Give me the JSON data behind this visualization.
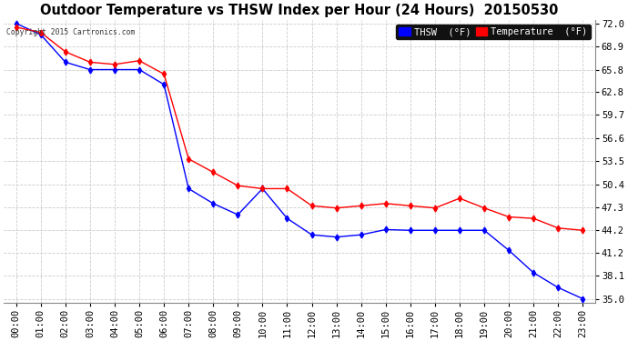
{
  "title": "Outdoor Temperature vs THSW Index per Hour (24 Hours)  20150530",
  "copyright": "Copyright 2015 Cartronics.com",
  "x_labels": [
    "00:00",
    "01:00",
    "02:00",
    "03:00",
    "04:00",
    "05:00",
    "06:00",
    "07:00",
    "08:00",
    "09:00",
    "10:00",
    "11:00",
    "12:00",
    "13:00",
    "14:00",
    "15:00",
    "16:00",
    "17:00",
    "18:00",
    "19:00",
    "20:00",
    "21:00",
    "22:00",
    "23:00"
  ],
  "thsw": [
    72.0,
    70.5,
    66.8,
    65.8,
    65.8,
    65.8,
    63.8,
    49.8,
    47.8,
    46.3,
    49.8,
    45.8,
    43.6,
    43.3,
    43.6,
    44.3,
    44.2,
    44.2,
    44.2,
    44.2,
    41.5,
    38.5,
    36.5,
    35.0
  ],
  "temperature": [
    71.5,
    70.8,
    68.2,
    66.8,
    66.5,
    67.0,
    65.2,
    53.8,
    52.0,
    50.2,
    49.8,
    49.8,
    47.5,
    47.2,
    47.5,
    47.8,
    47.5,
    47.2,
    48.5,
    47.2,
    46.0,
    45.8,
    44.5,
    44.2
  ],
  "thsw_color": "#0000ff",
  "temp_color": "#ff0000",
  "bg_color": "#ffffff",
  "grid_color": "#cccccc",
  "ylim_min": 35.0,
  "ylim_max": 72.0,
  "yticks": [
    35.0,
    38.1,
    41.2,
    44.2,
    47.3,
    50.4,
    53.5,
    56.6,
    59.7,
    62.8,
    65.8,
    68.9,
    72.0
  ],
  "title_fontsize": 10.5,
  "tick_fontsize": 7.5,
  "legend_thsw_label": "THSW  (°F)",
  "legend_temp_label": "Temperature  (°F)"
}
